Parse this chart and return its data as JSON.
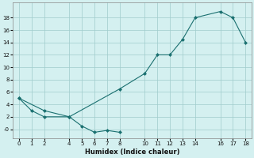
{
  "xlabel": "Humidex (Indice chaleur)",
  "background_color": "#d4f0f0",
  "line_color": "#1a7070",
  "grid_color": "#a0cccc",
  "xlim": [
    -0.5,
    18.5
  ],
  "ylim": [
    -1.5,
    20.5
  ],
  "xticks": [
    0,
    1,
    2,
    4,
    5,
    6,
    7,
    8,
    10,
    11,
    12,
    13,
    14,
    16,
    17,
    18
  ],
  "yticks": [
    0,
    2,
    4,
    6,
    8,
    10,
    12,
    14,
    16,
    18
  ],
  "ytick_labels": [
    "-0",
    "2",
    "4",
    "6",
    "8",
    "10",
    "12",
    "14",
    "16",
    "18"
  ],
  "line1_x": [
    0,
    1,
    2,
    4,
    5,
    6,
    7,
    8
  ],
  "line1_y": [
    5,
    3,
    2,
    2,
    0.5,
    -0.5,
    -0.2,
    -0.5
  ],
  "line2_x": [
    0,
    2,
    4,
    8,
    10,
    11,
    12,
    13,
    14,
    16,
    17,
    18
  ],
  "line2_y": [
    5,
    3,
    2,
    6.5,
    9,
    12,
    12,
    14.5,
    18,
    19,
    18,
    14
  ]
}
